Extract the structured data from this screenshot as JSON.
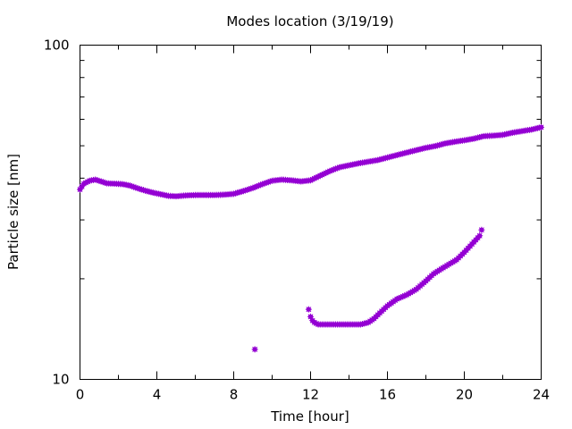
{
  "chart_data": {
    "type": "scatter",
    "title": "Modes location (3/19/19)",
    "xlabel": "Time [hour]",
    "ylabel": "Particle size [nm]",
    "xlim": [
      0,
      24
    ],
    "ylim": [
      10,
      100
    ],
    "yscale": "log",
    "grid": false,
    "legend": "none",
    "x_ticks": [
      0,
      4,
      8,
      12,
      16,
      20,
      24
    ],
    "x_tick_labels": [
      "0",
      "4",
      "8",
      "12",
      "16",
      "20",
      "24"
    ],
    "y_tick_labels": [
      "10",
      "100"
    ],
    "marker_color": "#9400d3",
    "series": [
      {
        "points": [
          [
            0.0,
            37.0
          ],
          [
            0.2,
            38.5
          ],
          [
            0.5,
            39.3
          ],
          [
            0.8,
            39.6
          ],
          [
            1.1,
            39.1
          ],
          [
            1.4,
            38.6
          ],
          [
            1.8,
            38.5
          ],
          [
            2.2,
            38.4
          ],
          [
            2.6,
            38.0
          ],
          [
            3.0,
            37.3
          ],
          [
            3.4,
            36.7
          ],
          [
            3.8,
            36.2
          ],
          [
            4.2,
            35.8
          ],
          [
            4.6,
            35.4
          ],
          [
            5.0,
            35.3
          ],
          [
            5.5,
            35.5
          ],
          [
            6.0,
            35.6
          ],
          [
            6.5,
            35.6
          ],
          [
            7.0,
            35.6
          ],
          [
            7.5,
            35.7
          ],
          [
            8.0,
            35.9
          ],
          [
            8.5,
            36.6
          ],
          [
            9.0,
            37.4
          ],
          [
            9.5,
            38.4
          ],
          [
            10.0,
            39.3
          ],
          [
            10.5,
            39.6
          ],
          [
            11.0,
            39.4
          ],
          [
            11.5,
            39.1
          ],
          [
            12.0,
            39.4
          ],
          [
            12.5,
            40.7
          ],
          [
            13.0,
            42.0
          ],
          [
            13.5,
            43.1
          ],
          [
            14.0,
            43.7
          ],
          [
            14.5,
            44.3
          ],
          [
            15.0,
            44.8
          ],
          [
            15.5,
            45.3
          ],
          [
            16.0,
            46.1
          ],
          [
            16.5,
            46.9
          ],
          [
            17.0,
            47.7
          ],
          [
            17.5,
            48.5
          ],
          [
            18.0,
            49.3
          ],
          [
            18.5,
            49.9
          ],
          [
            19.0,
            50.8
          ],
          [
            19.5,
            51.4
          ],
          [
            20.0,
            51.9
          ],
          [
            20.5,
            52.5
          ],
          [
            21.0,
            53.4
          ],
          [
            21.5,
            53.6
          ],
          [
            22.0,
            53.9
          ],
          [
            22.5,
            54.7
          ],
          [
            23.0,
            55.3
          ],
          [
            23.5,
            55.9
          ],
          [
            24.0,
            56.8
          ]
        ]
      },
      {
        "points": [
          [
            9.1,
            12.3
          ]
        ]
      },
      {
        "points": [
          [
            11.9,
            16.2
          ],
          [
            12.0,
            15.4
          ],
          [
            12.1,
            15.0
          ],
          [
            12.2,
            14.8
          ],
          [
            12.4,
            14.6
          ],
          [
            12.6,
            14.6
          ],
          [
            13.0,
            14.6
          ],
          [
            13.4,
            14.6
          ],
          [
            13.8,
            14.6
          ],
          [
            14.2,
            14.6
          ],
          [
            14.6,
            14.6
          ],
          [
            15.0,
            14.8
          ],
          [
            15.3,
            15.2
          ],
          [
            15.6,
            15.8
          ],
          [
            16.0,
            16.6
          ],
          [
            16.5,
            17.4
          ],
          [
            17.0,
            17.9
          ],
          [
            17.5,
            18.6
          ],
          [
            18.0,
            19.7
          ],
          [
            18.4,
            20.7
          ],
          [
            18.8,
            21.4
          ],
          [
            19.2,
            22.1
          ],
          [
            19.6,
            22.8
          ],
          [
            20.0,
            24.0
          ],
          [
            20.4,
            25.4
          ],
          [
            20.8,
            26.9
          ],
          [
            20.9,
            28.0
          ]
        ]
      }
    ]
  }
}
